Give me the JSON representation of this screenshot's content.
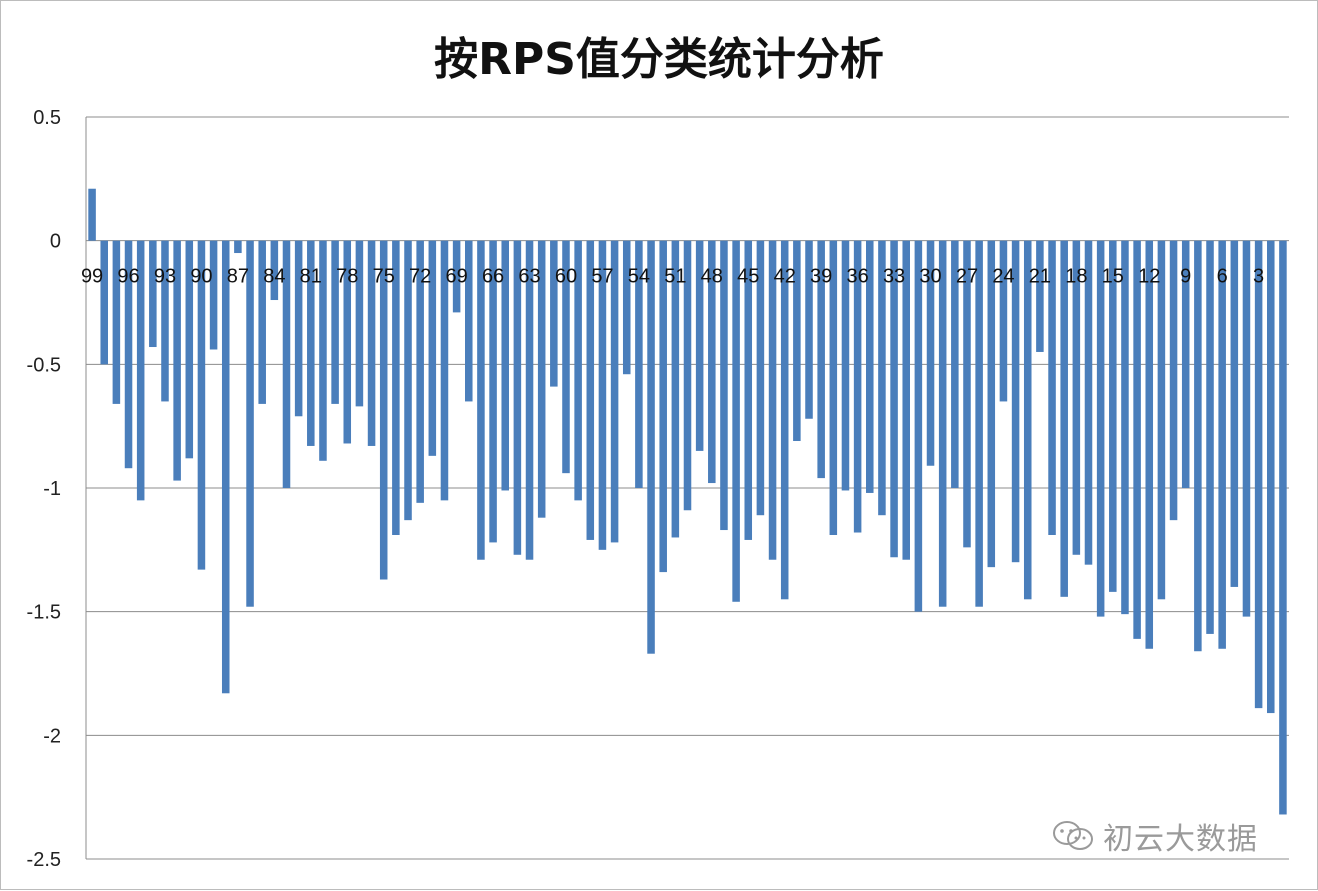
{
  "watermark": {
    "text": "初云大数据",
    "icon": "wechat-icon"
  },
  "colors": {
    "bar": "#4a7ebb",
    "grid": "#8c8c8c"
  },
  "chart_data": {
    "type": "bar",
    "title": "按RPS值分类统计分析",
    "xlabel": "",
    "ylabel": "",
    "ylim": [
      -2.5,
      0.5
    ],
    "yticks": [
      0.5,
      0,
      -0.5,
      -1,
      -1.5,
      -2,
      -2.5
    ],
    "ytick_labels": [
      "0.5",
      "0",
      "-0.5",
      "-1",
      "-1.5",
      "-2",
      "-2.5"
    ],
    "grid": true,
    "legend": "none",
    "categories": [
      99,
      98,
      97,
      96,
      95,
      94,
      93,
      92,
      91,
      90,
      89,
      88,
      87,
      86,
      85,
      84,
      83,
      82,
      81,
      80,
      79,
      78,
      77,
      76,
      75,
      74,
      73,
      72,
      71,
      70,
      69,
      68,
      67,
      66,
      65,
      64,
      63,
      62,
      61,
      60,
      59,
      58,
      57,
      56,
      55,
      54,
      53,
      52,
      51,
      50,
      49,
      48,
      47,
      46,
      45,
      44,
      43,
      42,
      41,
      40,
      39,
      38,
      37,
      36,
      35,
      34,
      33,
      32,
      31,
      30,
      29,
      28,
      27,
      26,
      25,
      24,
      23,
      22,
      21,
      20,
      19,
      18,
      17,
      16,
      15,
      14,
      13,
      12,
      11,
      10,
      9,
      8,
      7,
      6,
      5,
      4,
      3,
      2,
      1
    ],
    "tick_labels": [
      "99",
      "96",
      "93",
      "90",
      "87",
      "84",
      "81",
      "78",
      "75",
      "72",
      "69",
      "66",
      "63",
      "60",
      "57",
      "54",
      "51",
      "48",
      "45",
      "42",
      "39",
      "36",
      "33",
      "30",
      "27",
      "24",
      "21",
      "18",
      "15",
      "12",
      "9",
      "6",
      "3"
    ],
    "values": [
      0.21,
      -0.5,
      -0.66,
      -0.92,
      -1.05,
      -0.43,
      -0.65,
      -0.97,
      -0.88,
      -1.33,
      -0.44,
      -1.83,
      -0.05,
      -1.48,
      -0.66,
      -0.24,
      -1.0,
      -0.71,
      -0.83,
      -0.89,
      -0.66,
      -0.82,
      -0.67,
      -0.83,
      -1.37,
      -1.19,
      -1.13,
      -1.06,
      -0.87,
      -1.05,
      -0.29,
      -0.65,
      -1.29,
      -1.22,
      -1.01,
      -1.27,
      -1.29,
      -1.12,
      -0.59,
      -0.94,
      -1.05,
      -1.21,
      -1.25,
      -1.22,
      -0.54,
      -1.0,
      -1.67,
      -1.34,
      -1.2,
      -1.09,
      -0.85,
      -0.98,
      -1.17,
      -1.46,
      -1.21,
      -1.11,
      -1.29,
      -1.45,
      -0.81,
      -0.72,
      -0.96,
      -1.19,
      -1.01,
      -1.18,
      -1.02,
      -1.11,
      -1.28,
      -1.29,
      -1.5,
      -0.91,
      -1.48,
      -1.0,
      -1.24,
      -1.48,
      -1.32,
      -0.65,
      -1.3,
      -1.45,
      -0.45,
      -1.19,
      -1.44,
      -1.27,
      -1.31,
      -1.52,
      -1.42,
      -1.51,
      -1.61,
      -1.65,
      -1.45,
      -1.13,
      -1.0,
      -1.66,
      -1.59,
      -1.65,
      -1.4,
      -1.52,
      -1.89,
      -1.91,
      -2.32
    ]
  }
}
